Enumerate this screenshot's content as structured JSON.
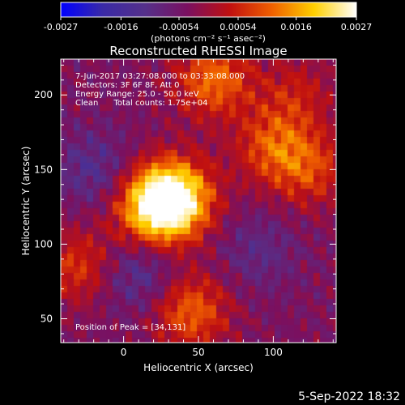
{
  "chart_data": {
    "type": "heatmap",
    "title": "Reconstructed RHESSI Image",
    "xlabel": "Heliocentric X (arcsec)",
    "ylabel": "Heliocentric Y (arcsec)",
    "xlim": [
      -42,
      142
    ],
    "ylim": [
      34,
      224
    ],
    "x_ticks": [
      0,
      50,
      100
    ],
    "y_ticks": [
      50,
      100,
      150,
      200
    ],
    "colorbar": {
      "min": -0.0027,
      "max": 0.0027,
      "tick_values": [
        -0.0027,
        -0.0016,
        -0.00054,
        0.00054,
        0.0016,
        0.0027
      ],
      "tick_labels": [
        "-0.0027",
        "-0.0016",
        "-0.00054",
        "0.00054",
        "0.0016",
        "0.0027"
      ],
      "units_label": "(photons cm⁻² s⁻¹ asec⁻²)"
    },
    "annotations": [
      "7-Jun-2017 03:27:08.000 to 03:33:08.000",
      "Detectors: 3F 6F 8F, Att 0",
      "Energy Range: 25.0 - 50.0 keV",
      "Clean      Total counts: 1.75e+04"
    ],
    "peak_label": "Position of Peak = [34,131]",
    "peak": {
      "x": 34,
      "y": 131
    },
    "colormap": [
      "#0000ff",
      "#3a2aa6",
      "#55308a",
      "#7a1060",
      "#c01010",
      "#f06000",
      "#ffd000",
      "#ffffff"
    ],
    "bright_regions": [
      {
        "x": 34,
        "y": 131,
        "amplitude": 0.0027
      },
      {
        "x": 20,
        "y": 124,
        "amplitude": 0.0021
      },
      {
        "x": 60,
        "y": 210,
        "amplitude": 0.0016
      },
      {
        "x": 45,
        "y": 55,
        "amplitude": 0.0015
      },
      {
        "x": 100,
        "y": 165,
        "amplitude": 0.0013
      },
      {
        "x": 125,
        "y": 150,
        "amplitude": 0.0011
      },
      {
        "x": -30,
        "y": 85,
        "amplitude": 0.0011
      },
      {
        "x": 115,
        "y": 200,
        "amplitude": 0.0008
      }
    ],
    "dark_regions": [
      {
        "x": 10,
        "y": 80,
        "amplitude": -0.0009
      },
      {
        "x": -20,
        "y": 150,
        "amplitude": -0.0008
      },
      {
        "x": 90,
        "y": 95,
        "amplitude": -0.0006
      }
    ]
  },
  "footer": {
    "date": "5-Sep-2022 18:32"
  }
}
